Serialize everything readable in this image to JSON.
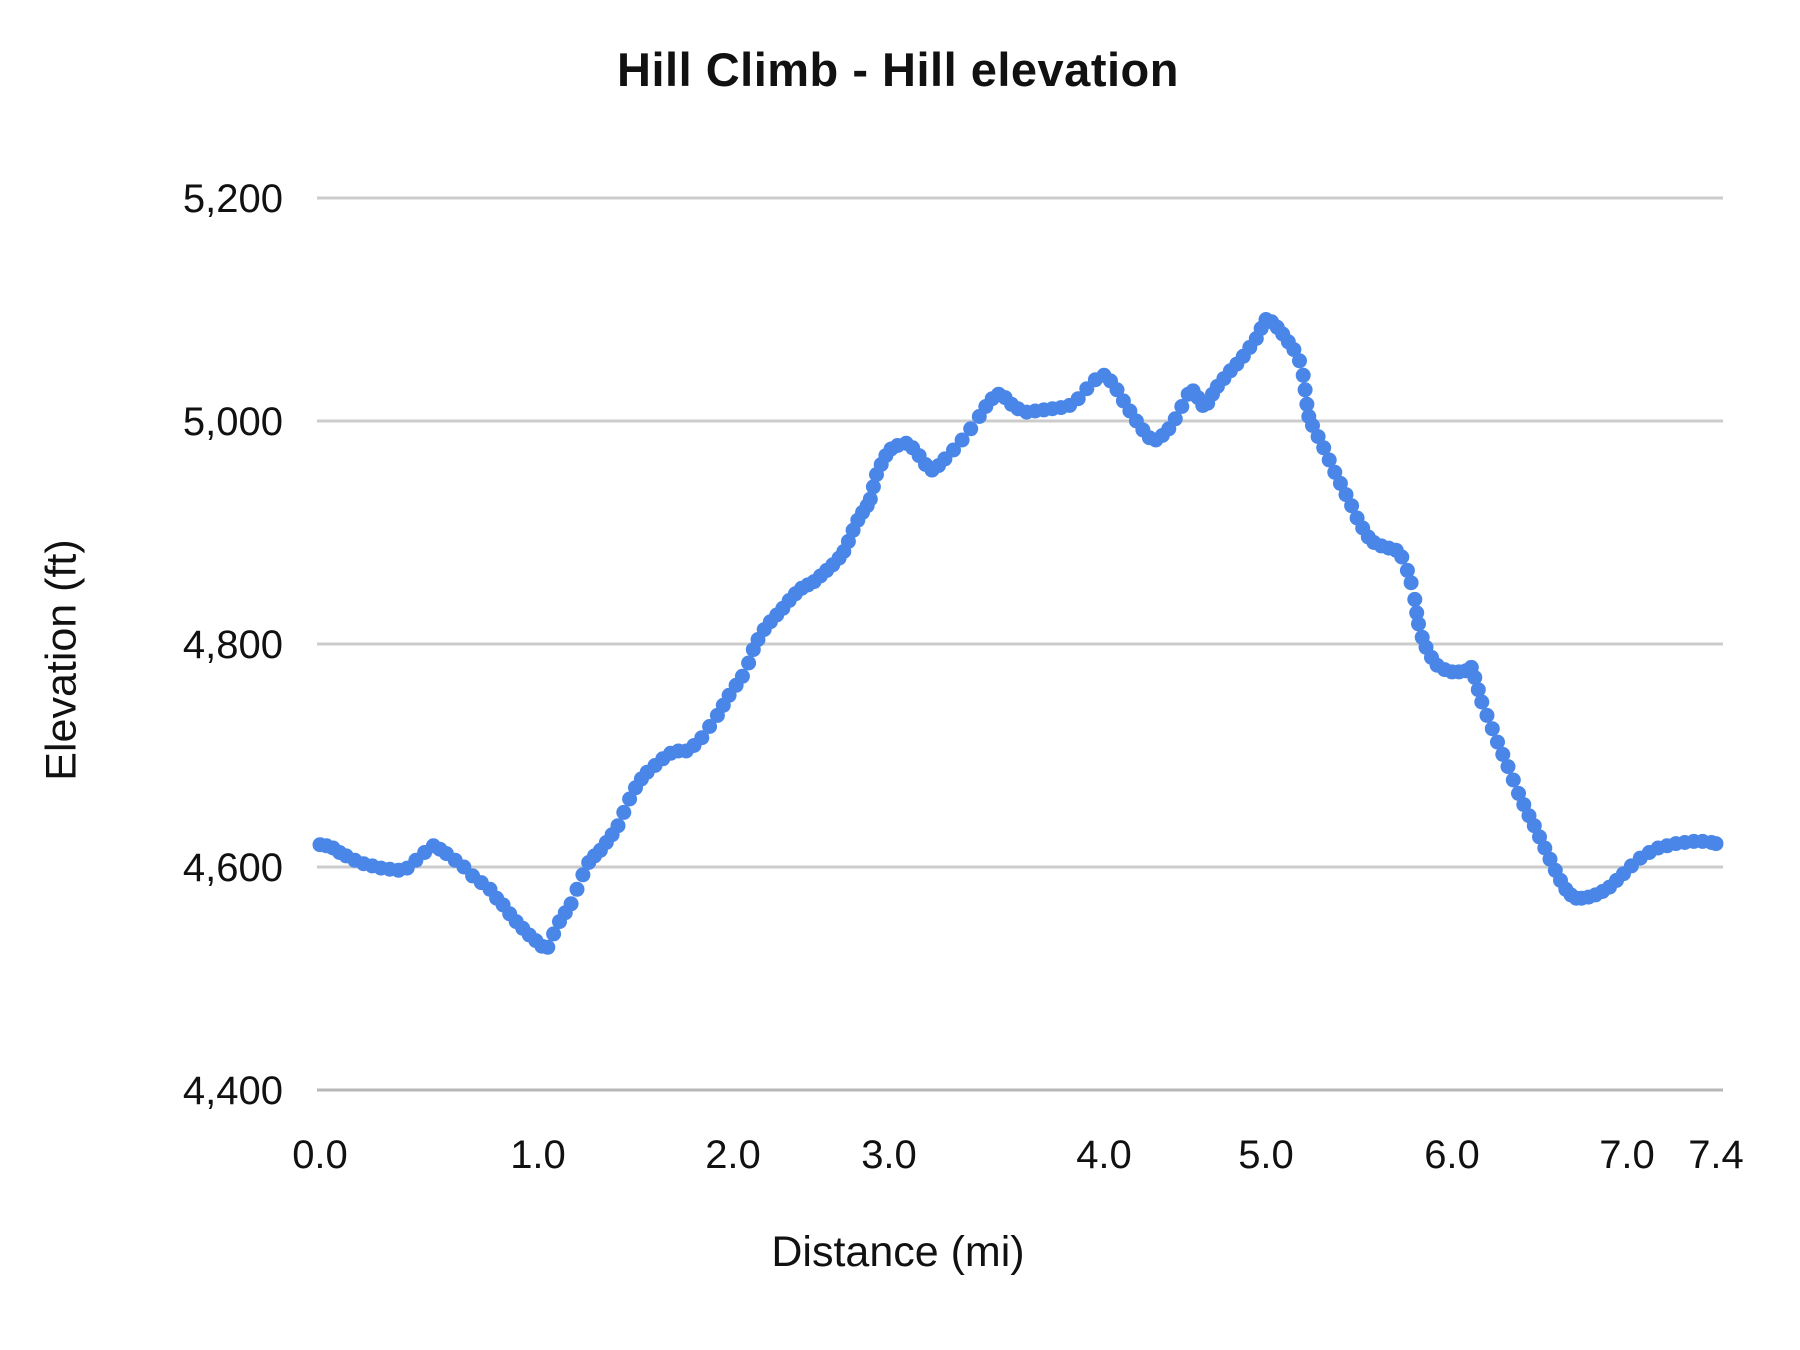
{
  "chart_data": {
    "type": "line",
    "title": "Hill Climb - Hill elevation",
    "xlabel": "Distance (mi)",
    "ylabel": "Elevation (ft)",
    "xlim": [
      0,
      7.4
    ],
    "ylim": [
      4400,
      5200
    ],
    "grid": "horizontal-only",
    "legend_position": "none",
    "marker_style": "large-round-dots",
    "x_ticks": {
      "values": [
        0.0,
        1.0,
        2.0,
        3.0,
        4.0,
        5.0,
        6.0,
        7.0,
        7.4
      ],
      "labels": [
        "0.0",
        "1.0",
        "2.0",
        "3.0",
        "4.0",
        "5.0",
        "6.0",
        "7.0",
        "7.4"
      ]
    },
    "y_ticks": {
      "values": [
        4400,
        4600,
        4800,
        5000,
        5200
      ],
      "labels": [
        "4,400",
        "4,600",
        "4,800",
        "5,000",
        "5,200"
      ]
    },
    "series": [
      {
        "name": "Hill elevation",
        "color": "#4a86e8",
        "points": [
          [
            0.0,
            4620
          ],
          [
            0.03,
            4619
          ],
          [
            0.06,
            4617
          ],
          [
            0.09,
            4613
          ],
          [
            0.12,
            4610
          ],
          [
            0.16,
            4606
          ],
          [
            0.2,
            4603
          ],
          [
            0.24,
            4601
          ],
          [
            0.28,
            4599
          ],
          [
            0.32,
            4598
          ],
          [
            0.36,
            4597
          ],
          [
            0.4,
            4599
          ],
          [
            0.44,
            4606
          ],
          [
            0.48,
            4613
          ],
          [
            0.52,
            4619
          ],
          [
            0.55,
            4616
          ],
          [
            0.58,
            4612
          ],
          [
            0.62,
            4606
          ],
          [
            0.66,
            4600
          ],
          [
            0.7,
            4592
          ],
          [
            0.74,
            4586
          ],
          [
            0.78,
            4580
          ],
          [
            0.81,
            4572
          ],
          [
            0.84,
            4566
          ],
          [
            0.87,
            4558
          ],
          [
            0.9,
            4551
          ],
          [
            0.93,
            4545
          ],
          [
            0.96,
            4539
          ],
          [
            0.99,
            4534
          ],
          [
            1.02,
            4529
          ],
          [
            1.05,
            4528
          ],
          [
            1.08,
            4540
          ],
          [
            1.11,
            4551
          ],
          [
            1.14,
            4559
          ],
          [
            1.17,
            4567
          ],
          [
            1.2,
            4580
          ],
          [
            1.23,
            4593
          ],
          [
            1.26,
            4604
          ],
          [
            1.29,
            4610
          ],
          [
            1.32,
            4615
          ],
          [
            1.35,
            4622
          ],
          [
            1.38,
            4629
          ],
          [
            1.41,
            4637
          ],
          [
            1.44,
            4649
          ],
          [
            1.47,
            4661
          ],
          [
            1.5,
            4671
          ],
          [
            1.53,
            4679
          ],
          [
            1.56,
            4685
          ],
          [
            1.6,
            4691
          ],
          [
            1.64,
            4697
          ],
          [
            1.68,
            4702
          ],
          [
            1.72,
            4704
          ],
          [
            1.76,
            4704
          ],
          [
            1.8,
            4709
          ],
          [
            1.84,
            4716
          ],
          [
            1.88,
            4726
          ],
          [
            1.92,
            4736
          ],
          [
            1.95,
            4745
          ],
          [
            1.98,
            4754
          ],
          [
            2.02,
            4763
          ],
          [
            2.06,
            4771
          ],
          [
            2.1,
            4783
          ],
          [
            2.13,
            4795
          ],
          [
            2.16,
            4804
          ],
          [
            2.2,
            4813
          ],
          [
            2.24,
            4820
          ],
          [
            2.28,
            4826
          ],
          [
            2.32,
            4832
          ],
          [
            2.36,
            4839
          ],
          [
            2.4,
            4845
          ],
          [
            2.44,
            4850
          ],
          [
            2.48,
            4853
          ],
          [
            2.52,
            4856
          ],
          [
            2.56,
            4861
          ],
          [
            2.6,
            4866
          ],
          [
            2.64,
            4871
          ],
          [
            2.68,
            4877
          ],
          [
            2.71,
            4883
          ],
          [
            2.74,
            4892
          ],
          [
            2.77,
            4902
          ],
          [
            2.8,
            4911
          ],
          [
            2.83,
            4918
          ],
          [
            2.86,
            4924
          ],
          [
            2.88,
            4930
          ],
          [
            2.9,
            4941
          ],
          [
            2.92,
            4952
          ],
          [
            2.95,
            4961
          ],
          [
            2.98,
            4969
          ],
          [
            3.01,
            4975
          ],
          [
            3.04,
            4978
          ],
          [
            3.08,
            4980
          ],
          [
            3.11,
            4976
          ],
          [
            3.14,
            4969
          ],
          [
            3.17,
            4961
          ],
          [
            3.2,
            4956
          ],
          [
            3.23,
            4960
          ],
          [
            3.26,
            4966
          ],
          [
            3.3,
            4974
          ],
          [
            3.34,
            4983
          ],
          [
            3.38,
            4993
          ],
          [
            3.42,
            5004
          ],
          [
            3.45,
            5013
          ],
          [
            3.48,
            5020
          ],
          [
            3.51,
            5024
          ],
          [
            3.54,
            5021
          ],
          [
            3.57,
            5015
          ],
          [
            3.6,
            5011
          ],
          [
            3.64,
            5008
          ],
          [
            3.68,
            5009
          ],
          [
            3.72,
            5010
          ],
          [
            3.76,
            5011
          ],
          [
            3.8,
            5012
          ],
          [
            3.84,
            5014
          ],
          [
            3.88,
            5020
          ],
          [
            3.92,
            5029
          ],
          [
            3.96,
            5037
          ],
          [
            4.0,
            5041
          ],
          [
            4.04,
            5036
          ],
          [
            4.08,
            5028
          ],
          [
            4.12,
            5018
          ],
          [
            4.16,
            5009
          ],
          [
            4.2,
            5000
          ],
          [
            4.24,
            4992
          ],
          [
            4.28,
            4985
          ],
          [
            4.32,
            4983
          ],
          [
            4.36,
            4987
          ],
          [
            4.4,
            4993
          ],
          [
            4.44,
            5002
          ],
          [
            4.48,
            5013
          ],
          [
            4.52,
            5024
          ],
          [
            4.55,
            5027
          ],
          [
            4.58,
            5021
          ],
          [
            4.61,
            5014
          ],
          [
            4.64,
            5016
          ],
          [
            4.67,
            5024
          ],
          [
            4.7,
            5031
          ],
          [
            4.74,
            5038
          ],
          [
            4.78,
            5045
          ],
          [
            4.82,
            5051
          ],
          [
            4.86,
            5058
          ],
          [
            4.9,
            5066
          ],
          [
            4.94,
            5074
          ],
          [
            4.97,
            5083
          ],
          [
            5.0,
            5091
          ],
          [
            5.03,
            5089
          ],
          [
            5.06,
            5084
          ],
          [
            5.09,
            5078
          ],
          [
            5.12,
            5071
          ],
          [
            5.15,
            5064
          ],
          [
            5.18,
            5054
          ],
          [
            5.2,
            5041
          ],
          [
            5.21,
            5028
          ],
          [
            5.22,
            5015
          ],
          [
            5.23,
            5004
          ],
          [
            5.25,
            4996
          ],
          [
            5.28,
            4986
          ],
          [
            5.31,
            4976
          ],
          [
            5.34,
            4965
          ],
          [
            5.37,
            4954
          ],
          [
            5.4,
            4944
          ],
          [
            5.43,
            4934
          ],
          [
            5.46,
            4924
          ],
          [
            5.49,
            4913
          ],
          [
            5.52,
            4904
          ],
          [
            5.55,
            4896
          ],
          [
            5.58,
            4891
          ],
          [
            5.62,
            4888
          ],
          [
            5.66,
            4886
          ],
          [
            5.7,
            4884
          ],
          [
            5.73,
            4878
          ],
          [
            5.76,
            4866
          ],
          [
            5.78,
            4855
          ],
          [
            5.8,
            4840
          ],
          [
            5.81,
            4828
          ],
          [
            5.82,
            4818
          ],
          [
            5.84,
            4806
          ],
          [
            5.86,
            4797
          ],
          [
            5.89,
            4788
          ],
          [
            5.92,
            4781
          ],
          [
            5.96,
            4777
          ],
          [
            6.0,
            4775
          ],
          [
            6.04,
            4775
          ],
          [
            6.08,
            4776
          ],
          [
            6.11,
            4779
          ],
          [
            6.13,
            4770
          ],
          [
            6.15,
            4759
          ],
          [
            6.17,
            4748
          ],
          [
            6.2,
            4736
          ],
          [
            6.23,
            4724
          ],
          [
            6.26,
            4712
          ],
          [
            6.29,
            4701
          ],
          [
            6.32,
            4690
          ],
          [
            6.35,
            4678
          ],
          [
            6.38,
            4666
          ],
          [
            6.41,
            4656
          ],
          [
            6.44,
            4646
          ],
          [
            6.47,
            4637
          ],
          [
            6.5,
            4627
          ],
          [
            6.53,
            4617
          ],
          [
            6.56,
            4607
          ],
          [
            6.59,
            4597
          ],
          [
            6.62,
            4588
          ],
          [
            6.65,
            4580
          ],
          [
            6.68,
            4575
          ],
          [
            6.71,
            4572
          ],
          [
            6.74,
            4572
          ],
          [
            6.78,
            4573
          ],
          [
            6.82,
            4575
          ],
          [
            6.86,
            4578
          ],
          [
            6.9,
            4582
          ],
          [
            6.94,
            4588
          ],
          [
            6.98,
            4594
          ],
          [
            7.02,
            4601
          ],
          [
            7.06,
            4608
          ],
          [
            7.1,
            4613
          ],
          [
            7.14,
            4617
          ],
          [
            7.18,
            4619
          ],
          [
            7.22,
            4621
          ],
          [
            7.26,
            4622
          ],
          [
            7.3,
            4623
          ],
          [
            7.34,
            4623
          ],
          [
            7.38,
            4622
          ],
          [
            7.4,
            4621
          ]
        ]
      }
    ]
  },
  "colors": {
    "series_blue": "#4a86e8",
    "gridline": "#cccccc",
    "baseline": "#b7b7b7",
    "text": "#111111",
    "background": "#ffffff"
  }
}
